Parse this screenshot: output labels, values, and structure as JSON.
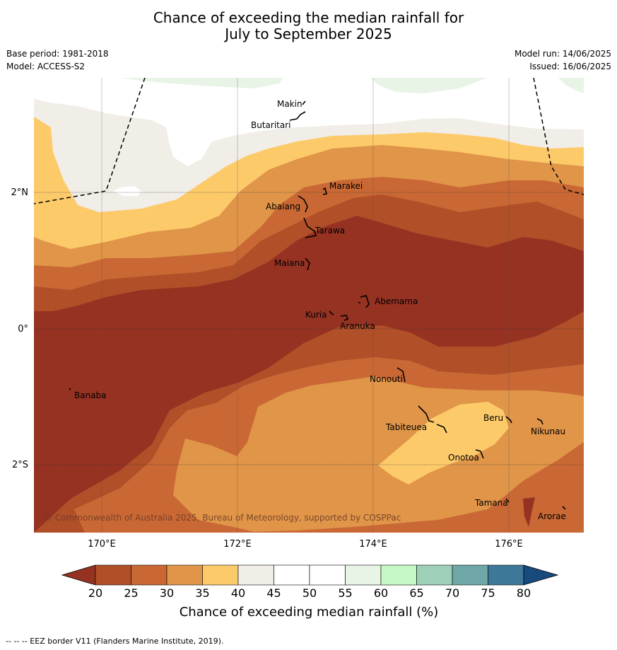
{
  "title_line1": "Chance of exceeding the median rainfall for",
  "title_line2": "July to September 2025",
  "base_period": "Base period: 1981-2018",
  "model": "Model: ACCESS-S2",
  "model_run": "Model run: 14/06/2025",
  "issued": "Issued: 16/06/2025",
  "lon_labels": [
    "170°E",
    "172°E",
    "174°E",
    "176°E"
  ],
  "lat_labels": [
    "2°N",
    "0°",
    "2°S"
  ],
  "places": {
    "makin": "Makin",
    "butaritari": "Butaritari",
    "marakei": "Marakei",
    "abaiang": "Abaiang",
    "tarawa": "Tarawa",
    "maiana": "Maiana",
    "abemama": "Abemama",
    "kuria": "Kuria",
    "aranuka": "Aranuka",
    "nonouti": "Nonouti",
    "banaba": "Banaba",
    "tabiteuea": "Tabiteuea",
    "beru": "Beru",
    "nikunau": "Nikunau",
    "onotoa": "Onotoa",
    "tamana": "Tamana",
    "arorae": "Arorae"
  },
  "copyright": "© Commonwealth of Australia 2025, Bureau of Meteorology, supported by COSPPac",
  "colorbar": {
    "ticks": [
      "20",
      "25",
      "30",
      "35",
      "40",
      "45",
      "50",
      "55",
      "60",
      "65",
      "70",
      "75",
      "80"
    ],
    "colors": [
      "#963222",
      "#b04f28",
      "#c96834",
      "#e09548",
      "#fdca6a",
      "#f1ede7",
      "#ffffff",
      "#ffffff",
      "#e8f4e6",
      "#c7f7c5",
      "#9ed0b9",
      "#6ea7a6",
      "#3e7798",
      "#184a7d"
    ],
    "label": "Chance of exceeding median rainfall (%)"
  },
  "footnote": "--  --  -- EEZ border V11 (Flanders Marine Institute, 2019)."
}
